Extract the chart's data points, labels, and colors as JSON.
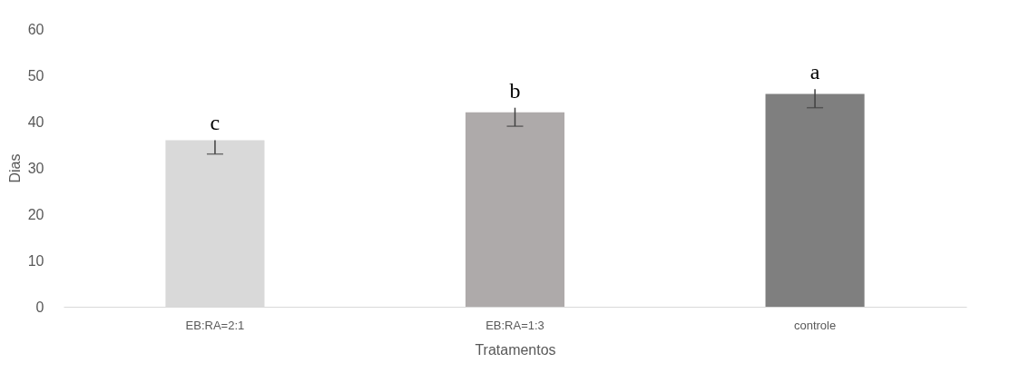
{
  "chart_data": {
    "type": "bar",
    "xlabel": "Tratamentos",
    "ylabel": "Dias",
    "categories": [
      "EB:RA=2:1",
      "EB:RA=1:3",
      "controle"
    ],
    "values": [
      36,
      42,
      46
    ],
    "colors": [
      "#d9d9d9",
      "#aeaaaa",
      "#7f7f7f"
    ],
    "errors": [
      [
        33,
        36
      ],
      [
        39,
        43
      ],
      [
        43,
        47
      ]
    ],
    "ylim": [
      0,
      60
    ],
    "yticks": [
      0,
      10,
      20,
      30,
      40,
      50,
      60
    ],
    "grid": false,
    "legend": false,
    "annotations": [
      "c",
      "b",
      "a"
    ]
  }
}
